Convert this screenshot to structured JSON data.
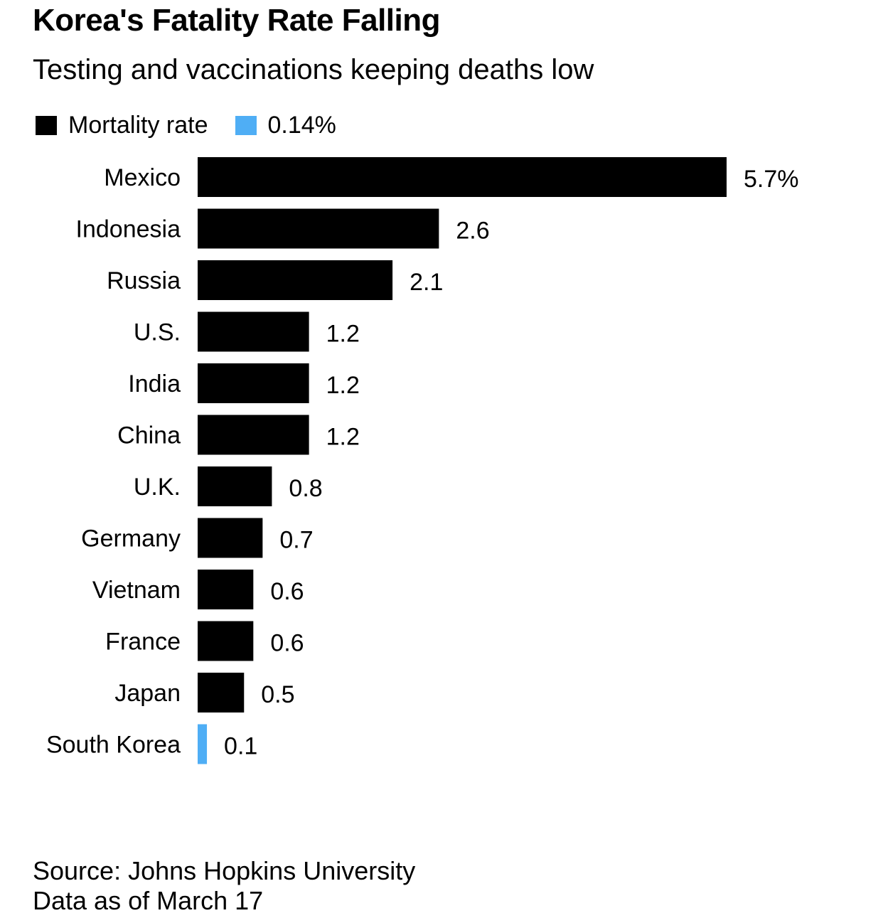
{
  "header": {
    "title": "Korea's Fatality Rate Falling",
    "subtitle": "Testing and vaccinations keeping deaths low"
  },
  "legend": {
    "items": [
      {
        "label": "Mortality rate",
        "color": "#000000"
      },
      {
        "label": "0.14%",
        "color": "#4FAEF5"
      }
    ]
  },
  "chart_data": {
    "type": "bar",
    "orientation": "horizontal",
    "categories": [
      "Mexico",
      "Indonesia",
      "Russia",
      "U.S.",
      "India",
      "China",
      "U.K.",
      "Germany",
      "Vietnam",
      "France",
      "Japan",
      "South Korea"
    ],
    "values": [
      5.7,
      2.6,
      2.1,
      1.2,
      1.2,
      1.2,
      0.8,
      0.7,
      0.6,
      0.6,
      0.5,
      0.1
    ],
    "value_labels": [
      "5.7%",
      "2.6",
      "2.1",
      "1.2",
      "1.2",
      "1.2",
      "0.8",
      "0.7",
      "0.6",
      "0.6",
      "0.5",
      "0.1"
    ],
    "bar_colors": [
      "#000000",
      "#000000",
      "#000000",
      "#000000",
      "#000000",
      "#000000",
      "#000000",
      "#000000",
      "#000000",
      "#000000",
      "#000000",
      "#4FAEF5"
    ],
    "xlim": [
      0,
      5.7
    ],
    "grid": false
  },
  "footer": {
    "source": "Source: Johns Hopkins University",
    "note": "Data as of March 17"
  }
}
